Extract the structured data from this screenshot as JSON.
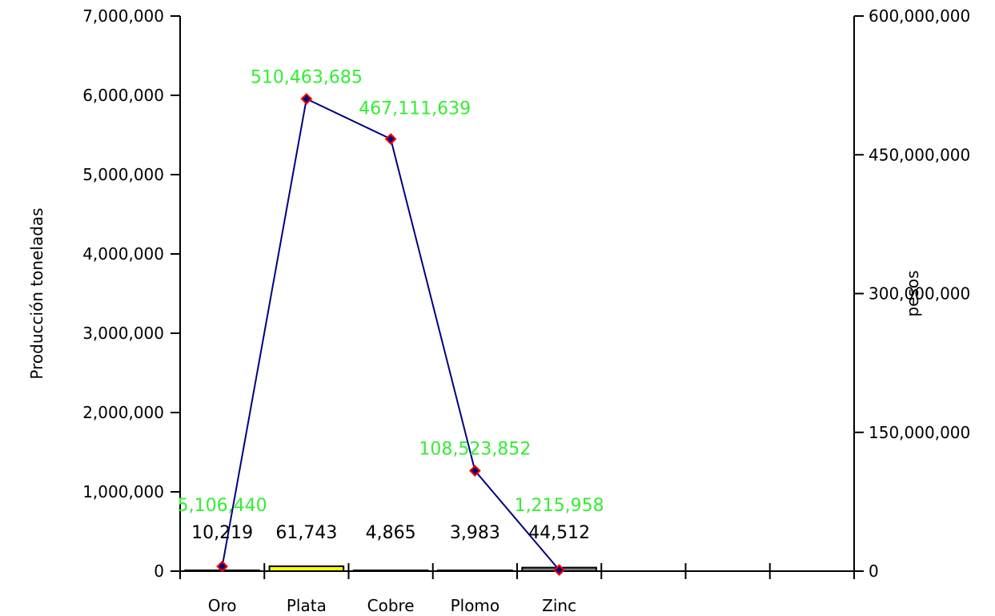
{
  "chart_data": {
    "type": "bar",
    "categories": [
      "Oro",
      "Plata",
      "Cobre",
      "Plomo",
      "Zinc"
    ],
    "ylabel_left": "Producción toneladas",
    "ylabel_right": "pesos",
    "ylim_left": [
      0,
      7000000
    ],
    "ylim_right": [
      0,
      600000000
    ],
    "yticks_left": [
      "0",
      "1,000,000",
      "2,000,000",
      "3,000,000",
      "4,000,000",
      "5,000,000",
      "6,000,000",
      "7,000,000"
    ],
    "yticks_right": [
      "0",
      "150,000,000",
      "300,000,000",
      "450,000,000",
      "600,000,000"
    ],
    "bar_series": {
      "values": [
        10219,
        61743,
        4865,
        3983,
        44512
      ],
      "labels": [
        "10,219",
        "61,743",
        "4,865",
        "3,983",
        "44,512"
      ],
      "colors": [
        "#ffffff",
        "#ffff00",
        "#ffffff",
        "#ffffff",
        "#808080"
      ]
    },
    "line_series": {
      "values": [
        5106440,
        510463685,
        467111639,
        108523852,
        1215958
      ],
      "labels": [
        "5,106,440",
        "510,463,685",
        "467,111,639",
        "108,523,852",
        "1,215,958"
      ],
      "line_color": "#000080",
      "marker_color": "#ff0000",
      "label_color": "#33ee33"
    },
    "grid": false,
    "legend": "none"
  }
}
